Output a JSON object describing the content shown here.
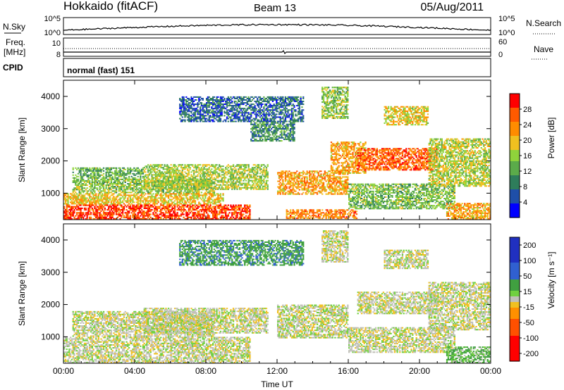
{
  "header": {
    "station": "Hokkaido (fitACF)",
    "beam": "Beam 13",
    "date": "05/Aug/2011"
  },
  "noise_panel": {
    "left_label": "N.Sky",
    "right_label": "N.Search",
    "left_ticks": [
      "10^5",
      "10^0"
    ],
    "right_ticks": [
      "10^5",
      "10^0"
    ]
  },
  "freq_panel": {
    "left_label_1": "Freq.",
    "left_label_2": "[MHz]",
    "right_label": "Nave",
    "left_ticks": [
      "10",
      "8"
    ],
    "right_ticks": [
      "60",
      "0"
    ]
  },
  "cpid_panel": {
    "label": "CPID",
    "value": "normal (fast) 151"
  },
  "colors": {
    "power_scale": [
      "#0000ff",
      "#1f4fa8",
      "#2e7d5b",
      "#5bab4a",
      "#8fd33b",
      "#f0c020",
      "#ff8c00",
      "#ff5a00",
      "#ff0000"
    ],
    "velocity_scale": [
      "#2030c0",
      "#3060d0",
      "#40a040",
      "#70d040",
      "#c0c0b8",
      "#f0c020",
      "#ff9000",
      "#ff5000",
      "#ff0000"
    ]
  },
  "chart_data": [
    {
      "type": "heatmap",
      "name": "power",
      "ylabel": "Slant Range [km]",
      "xlabel": "",
      "x_ticks": [
        "00:00",
        "04:00",
        "08:00",
        "12:00",
        "16:00",
        "20:00",
        "00:00"
      ],
      "xlim_hours": [
        0,
        24
      ],
      "y_ticks": [
        1000,
        2000,
        3000,
        4000
      ],
      "ylim": [
        180,
        4500
      ],
      "colorbar": {
        "label": "Power [dB]",
        "ticks": [
          4,
          8,
          12,
          16,
          20,
          24,
          28
        ],
        "range": [
          0,
          32
        ]
      },
      "echo_regions": [
        {
          "t0": 0.0,
          "t1": 10.5,
          "r0": 180,
          "r1": 650,
          "level": 28
        },
        {
          "t0": 0.0,
          "t1": 9.0,
          "r0": 650,
          "r1": 1000,
          "level": 20
        },
        {
          "t0": 0.5,
          "t1": 8.5,
          "r0": 1000,
          "r1": 1450,
          "level": 15
        },
        {
          "t0": 0.5,
          "t1": 4.5,
          "r0": 1450,
          "r1": 1800,
          "level": 13
        },
        {
          "t0": 4.5,
          "t1": 11.5,
          "r0": 1100,
          "r1": 1900,
          "level": 16
        },
        {
          "t0": 6.5,
          "t1": 13.5,
          "r0": 3200,
          "r1": 4000,
          "level": 7
        },
        {
          "t0": 10.5,
          "t1": 13.0,
          "r0": 2600,
          "r1": 3200,
          "level": 10
        },
        {
          "t0": 12.0,
          "t1": 16.0,
          "r0": 950,
          "r1": 1700,
          "level": 22
        },
        {
          "t0": 12.5,
          "t1": 16.5,
          "r0": 200,
          "r1": 500,
          "level": 24
        },
        {
          "t0": 14.5,
          "t1": 16.0,
          "r0": 3300,
          "r1": 4300,
          "level": 15
        },
        {
          "t0": 15.0,
          "t1": 17.0,
          "r0": 1600,
          "r1": 2600,
          "level": 22
        },
        {
          "t0": 16.5,
          "t1": 21.0,
          "r0": 1700,
          "r1": 2400,
          "level": 26
        },
        {
          "t0": 18.0,
          "t1": 20.5,
          "r0": 3100,
          "r1": 3700,
          "level": 19
        },
        {
          "t0": 16.0,
          "t1": 22.0,
          "r0": 500,
          "r1": 1300,
          "level": 14
        },
        {
          "t0": 20.5,
          "t1": 24.0,
          "r0": 1200,
          "r1": 2700,
          "level": 17
        },
        {
          "t0": 21.5,
          "t1": 24.0,
          "r0": 180,
          "r1": 700,
          "level": 22
        }
      ]
    },
    {
      "type": "heatmap",
      "name": "velocity",
      "ylabel": "Slant Range [km]",
      "xlabel": "Time UT",
      "x_ticks": [
        "00:00",
        "04:00",
        "08:00",
        "12:00",
        "16:00",
        "20:00",
        "00:00"
      ],
      "xlim_hours": [
        0,
        24
      ],
      "y_ticks": [
        1000,
        2000,
        3000,
        4000
      ],
      "ylim": [
        180,
        4500
      ],
      "colorbar": {
        "label": "Velocity [m s⁻¹]",
        "ticks": [
          200,
          100,
          50,
          15,
          -15,
          -50,
          -100,
          -200
        ],
        "range": [
          -250,
          250
        ]
      },
      "echo_regions": [
        {
          "t0": 0.0,
          "t1": 10.5,
          "r0": 180,
          "r1": 1000,
          "level": 0
        },
        {
          "t0": 0.5,
          "t1": 8.5,
          "r0": 1000,
          "r1": 1800,
          "level": 0
        },
        {
          "t0": 4.5,
          "t1": 11.5,
          "r0": 1100,
          "r1": 1900,
          "level": 0
        },
        {
          "t0": 6.5,
          "t1": 13.5,
          "r0": 3200,
          "r1": 4000,
          "level": 60
        },
        {
          "t0": 12.0,
          "t1": 16.0,
          "r0": 950,
          "r1": 2000,
          "level": 0
        },
        {
          "t0": 14.5,
          "t1": 16.0,
          "r0": 3300,
          "r1": 4300,
          "level": 0
        },
        {
          "t0": 16.5,
          "t1": 21.0,
          "r0": 1700,
          "r1": 2400,
          "level": 0
        },
        {
          "t0": 18.0,
          "t1": 20.5,
          "r0": 3100,
          "r1": 3700,
          "level": 0
        },
        {
          "t0": 16.0,
          "t1": 22.0,
          "r0": 500,
          "r1": 1300,
          "level": 0
        },
        {
          "t0": 20.5,
          "t1": 24.0,
          "r0": 1200,
          "r1": 2700,
          "level": 0
        },
        {
          "t0": 21.5,
          "t1": 24.0,
          "r0": 180,
          "r1": 700,
          "level": 30
        }
      ]
    }
  ]
}
